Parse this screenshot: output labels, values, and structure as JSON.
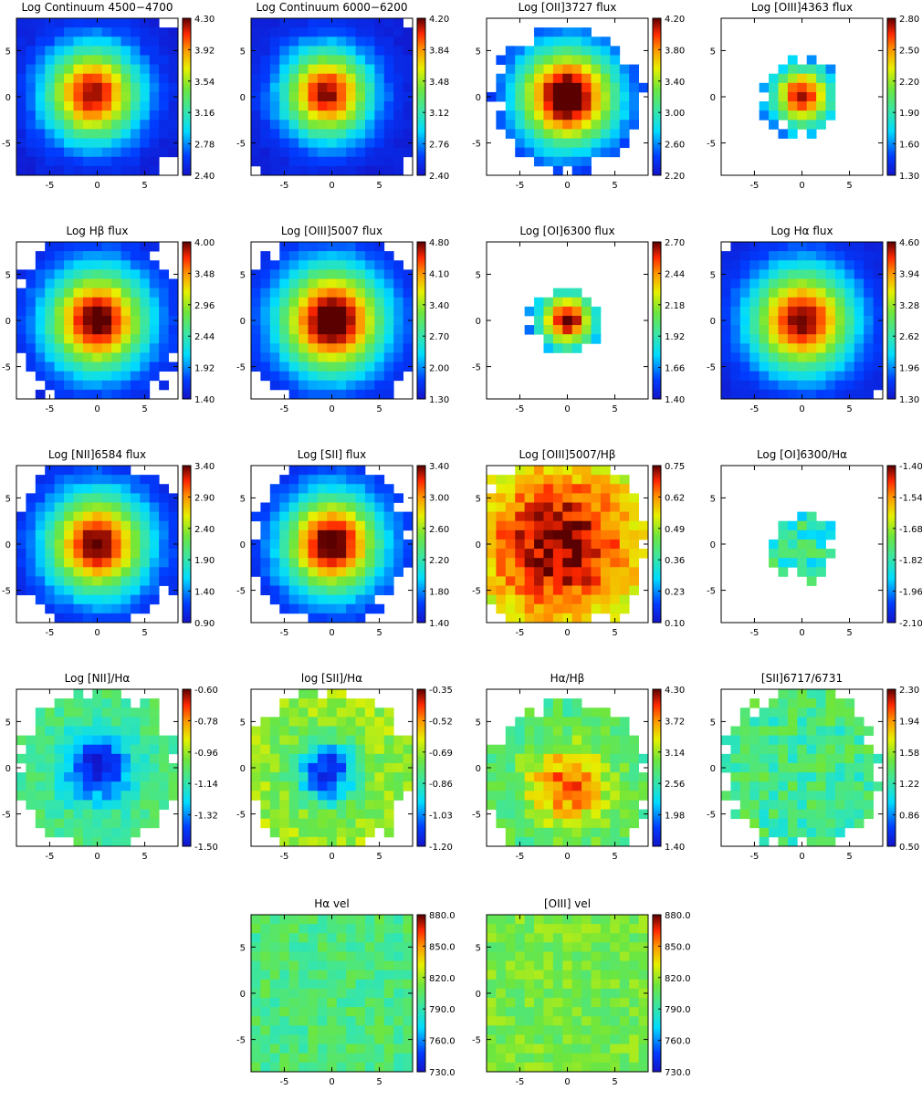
{
  "figure": {
    "axis": {
      "xlim": [
        -8.5,
        8.5
      ],
      "ylim": [
        -8.5,
        8.5
      ],
      "ticks": [
        -5,
        0,
        5
      ],
      "tick_labels": [
        "-5",
        "0",
        "5"
      ]
    },
    "grid_size": 17
  },
  "chart_data": [
    {
      "id": "cont4500",
      "type": "heatmap",
      "title": "Log Continuum 4500−4700",
      "colorbar": {
        "min": 2.4,
        "max": 4.3,
        "tick_labels": [
          "4.30",
          "3.92",
          "3.54",
          "3.16",
          "2.78",
          "2.40"
        ]
      },
      "peak": 4.25,
      "sigma": 3.4,
      "radius": 11,
      "noise": 0.04,
      "center": [
        -0.5,
        0.3
      ],
      "floor": 2.45
    },
    {
      "id": "cont6000",
      "type": "heatmap",
      "title": "Log Continuum 6000−6200",
      "colorbar": {
        "min": 2.4,
        "max": 4.2,
        "tick_labels": [
          "4.20",
          "3.84",
          "3.48",
          "3.12",
          "2.76",
          "2.40"
        ]
      },
      "peak": 4.15,
      "sigma": 3.2,
      "radius": 11,
      "noise": 0.04,
      "center": [
        -0.5,
        0.3
      ],
      "floor": 2.45
    },
    {
      "id": "oii3727",
      "type": "heatmap",
      "title": "Log [OII]3727 flux",
      "colorbar": {
        "min": 2.2,
        "max": 4.2,
        "tick_labels": [
          "4.20",
          "3.80",
          "3.40",
          "3.00",
          "2.60",
          "2.20"
        ]
      },
      "peak": 4.4,
      "sigma": 3.6,
      "radius": 7.6,
      "noise": 0.05,
      "center": [
        0,
        0
      ],
      "floor": 2.25
    },
    {
      "id": "oiii4363",
      "type": "heatmap",
      "title": "Log [OIII]4363 flux",
      "colorbar": {
        "min": 1.3,
        "max": 2.8,
        "tick_labels": [
          "2.80",
          "2.50",
          "2.20",
          "1.90",
          "1.60",
          "1.30"
        ]
      },
      "peak": 2.75,
      "sigma": 2.2,
      "radius": 4.1,
      "noise": 0.06,
      "center": [
        0,
        0
      ],
      "floor": 1.4
    },
    {
      "id": "hbeta",
      "type": "heatmap",
      "title": "Log Hβ flux",
      "colorbar": {
        "min": 1.4,
        "max": 4.0,
        "tick_labels": [
          "4.00",
          "3.48",
          "2.96",
          "2.44",
          "1.92",
          "1.40"
        ]
      },
      "peak": 4.1,
      "sigma": 3.6,
      "radius": 9.2,
      "noise": 0.05,
      "center": [
        0,
        0
      ],
      "floor": 1.5
    },
    {
      "id": "oiii5007",
      "type": "heatmap",
      "title": "Log [OIII]5007 flux",
      "colorbar": {
        "min": 1.3,
        "max": 4.8,
        "tick_labels": [
          "4.80",
          "4.10",
          "3.40",
          "2.70",
          "2.00",
          "1.30"
        ]
      },
      "peak": 5.1,
      "sigma": 3.8,
      "radius": 9.4,
      "noise": 0.05,
      "center": [
        0,
        0
      ],
      "floor": 1.4
    },
    {
      "id": "oi6300",
      "type": "heatmap",
      "title": "Log [OI]6300 flux",
      "colorbar": {
        "min": 1.4,
        "max": 2.7,
        "tick_labels": [
          "2.70",
          "2.44",
          "2.18",
          "1.92",
          "1.66",
          "1.40"
        ]
      },
      "peak": 2.72,
      "sigma": 2.0,
      "radius": 3.5,
      "noise": 0.05,
      "center": [
        0,
        0
      ],
      "floor": 1.5
    },
    {
      "id": "halpha",
      "type": "heatmap",
      "title": "Log Hα flux",
      "colorbar": {
        "min": 1.3,
        "max": 4.6,
        "tick_labels": [
          "4.60",
          "3.94",
          "3.28",
          "2.62",
          "1.96",
          "1.30"
        ]
      },
      "peak": 4.6,
      "sigma": 3.7,
      "radius": 11,
      "noise": 0.05,
      "center": [
        0,
        0
      ],
      "floor": 1.4
    },
    {
      "id": "nii6584",
      "type": "heatmap",
      "title": "Log [NII]6584 flux",
      "colorbar": {
        "min": 0.9,
        "max": 3.4,
        "tick_labels": [
          "3.40",
          "2.90",
          "2.40",
          "1.90",
          "1.40",
          "0.90"
        ]
      },
      "peak": 3.45,
      "sigma": 3.6,
      "radius": 9.1,
      "noise": 0.06,
      "center": [
        0,
        0
      ],
      "floor": 1.0
    },
    {
      "id": "sii",
      "type": "heatmap",
      "title": "Log [SII] flux",
      "colorbar": {
        "min": 1.4,
        "max": 3.4,
        "tick_labels": [
          "3.40",
          "3.00",
          "2.60",
          "2.20",
          "1.80",
          "1.40"
        ]
      },
      "peak": 3.5,
      "sigma": 3.5,
      "radius": 8.4,
      "noise": 0.05,
      "center": [
        0,
        0
      ],
      "floor": 1.5
    },
    {
      "id": "oiii_hb",
      "type": "heatmap",
      "title": "Log [OIII]5007/Hβ",
      "colorbar": {
        "min": 0.1,
        "max": 0.75,
        "tick_labels": [
          "0.75",
          "0.62",
          "0.49",
          "0.36",
          "0.23",
          "0.10"
        ]
      },
      "peak": 0.74,
      "sigma": 7.0,
      "radius": 9.4,
      "noise": 0.05,
      "center": [
        -1,
        0
      ],
      "floor": 0.4
    },
    {
      "id": "oi_ha",
      "type": "heatmap",
      "title": "Log [OI]6300/Hα",
      "colorbar": {
        "min": -2.1,
        "max": -1.4,
        "tick_labels": [
          "-1.40",
          "-1.54",
          "-1.68",
          "-1.82",
          "-1.96",
          "-2.10"
        ]
      },
      "peak": -1.82,
      "sigma": 4.0,
      "radius": 3.6,
      "noise": 0.1,
      "center": [
        0,
        0
      ],
      "floor": -1.82
    },
    {
      "id": "nii_ha",
      "type": "heatmap",
      "title": "Log [NII]/Hα",
      "colorbar": {
        "min": -1.5,
        "max": -0.6,
        "tick_labels": [
          "-0.60",
          "-0.78",
          "-0.96",
          "-1.14",
          "-1.32",
          "-1.50"
        ]
      },
      "peak": -1.48,
      "sigma": 2.6,
      "radius": 8.4,
      "noise": 0.06,
      "center": [
        0,
        0
      ],
      "floor": -1.08
    },
    {
      "id": "sii_ha",
      "type": "heatmap",
      "title": "log [SII]/Hα",
      "colorbar": {
        "min": -1.2,
        "max": -0.35,
        "tick_labels": [
          "-0.35",
          "-0.52",
          "-0.69",
          "-0.86",
          "-1.03",
          "-1.20"
        ]
      },
      "peak": -1.16,
      "sigma": 2.3,
      "radius": 8.6,
      "noise": 0.07,
      "center": [
        -0.5,
        -0.5
      ],
      "floor": -0.7
    },
    {
      "id": "ha_hb",
      "type": "heatmap",
      "title": "Hα/Hβ",
      "colorbar": {
        "min": 1.4,
        "max": 4.3,
        "tick_labels": [
          "4.30",
          "3.72",
          "3.14",
          "2.56",
          "1.98",
          "1.40"
        ]
      },
      "peak": 3.9,
      "sigma": 3.0,
      "radius": 8.6,
      "noise": 0.25,
      "center": [
        0,
        -2
      ],
      "floor": 2.75
    },
    {
      "id": "sii_ratio",
      "type": "heatmap",
      "title": "[SII]6717/6731",
      "colorbar": {
        "min": 0.5,
        "max": 2.3,
        "tick_labels": [
          "2.30",
          "1.94",
          "1.58",
          "1.22",
          "0.86",
          "0.50"
        ]
      },
      "peak": 1.3,
      "sigma": 8.0,
      "radius": 8.2,
      "noise": 0.2,
      "center": [
        0,
        0
      ],
      "floor": 1.3
    },
    {
      "id": "ha_vel",
      "type": "heatmap",
      "title": "Hα vel",
      "colorbar": {
        "min": 730.0,
        "max": 880.0,
        "tick_labels": [
          "880.0",
          "850.0",
          "820.0",
          "790.0",
          "760.0",
          "730.0"
        ]
      },
      "peak": 800,
      "sigma": 10.0,
      "radius": 12,
      "noise": 12,
      "center": [
        0,
        0
      ],
      "floor": 800
    },
    {
      "id": "oiii_vel",
      "type": "heatmap",
      "title": "[OIII] vel",
      "colorbar": {
        "min": 730.0,
        "max": 880.0,
        "tick_labels": [
          "880.0",
          "850.0",
          "820.0",
          "790.0",
          "760.0",
          "730.0"
        ]
      },
      "peak": 812,
      "sigma": 10.0,
      "radius": 12,
      "noise": 11,
      "center": [
        0,
        0
      ],
      "floor": 812
    }
  ]
}
